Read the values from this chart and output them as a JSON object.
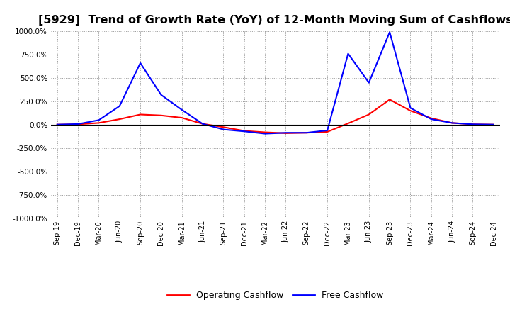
{
  "title": "[5929]  Trend of Growth Rate (YoY) of 12-Month Moving Sum of Cashflows",
  "title_fontsize": 11.5,
  "xlabel": "",
  "ylabel": "",
  "ylim": [
    -1000,
    1000
  ],
  "yticks": [
    -1000,
    -750,
    -500,
    -250,
    0,
    250,
    500,
    750,
    1000
  ],
  "background_color": "#ffffff",
  "plot_bg_color": "#ffffff",
  "grid_color": "#999999",
  "legend_labels": [
    "Operating Cashflow",
    "Free Cashflow"
  ],
  "legend_colors": [
    "#ff0000",
    "#0000ff"
  ],
  "x_labels": [
    "Sep-19",
    "Dec-19",
    "Mar-20",
    "Jun-20",
    "Sep-20",
    "Dec-20",
    "Mar-21",
    "Jun-21",
    "Sep-21",
    "Dec-21",
    "Mar-22",
    "Jun-22",
    "Sep-22",
    "Dec-22",
    "Mar-23",
    "Jun-23",
    "Sep-23",
    "Dec-23",
    "Mar-24",
    "Jun-24",
    "Sep-24",
    "Dec-24"
  ],
  "operating_cashflow": [
    2,
    5,
    20,
    60,
    110,
    100,
    75,
    10,
    -25,
    -65,
    -80,
    -90,
    -85,
    -75,
    15,
    110,
    270,
    150,
    70,
    20,
    5,
    2
  ],
  "free_cashflow": [
    2,
    8,
    50,
    200,
    660,
    320,
    160,
    10,
    -50,
    -70,
    -95,
    -85,
    -85,
    -60,
    760,
    450,
    990,
    180,
    60,
    20,
    5,
    2
  ]
}
